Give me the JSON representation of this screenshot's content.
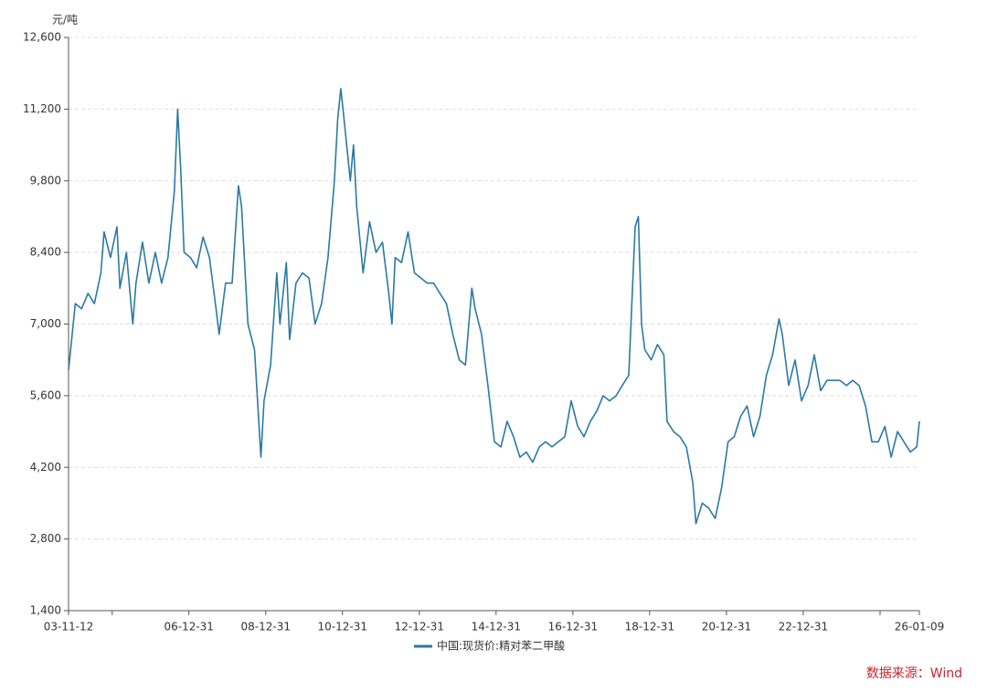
{
  "chart_data": {
    "type": "line",
    "y_unit": "元/吨",
    "source": "数据来源：Wind",
    "ylim": [
      1400,
      12600
    ],
    "yticks": [
      {
        "value": 1400,
        "label": "1,400"
      },
      {
        "value": 2800,
        "label": "2,800"
      },
      {
        "value": 4200,
        "label": "4,200"
      },
      {
        "value": 5600,
        "label": "5,600"
      },
      {
        "value": 7000,
        "label": "7,000"
      },
      {
        "value": 8400,
        "label": "8,400"
      },
      {
        "value": 9800,
        "label": "9,800"
      },
      {
        "value": 11200,
        "label": "11,200"
      },
      {
        "value": 12600,
        "label": "12,600"
      }
    ],
    "xlim": [
      "2003-11-12",
      "2026-01-09"
    ],
    "xticks": [
      {
        "value": "2003-11-12",
        "label": "03-11-12"
      },
      {
        "value": "2004-12-31",
        "label": null
      },
      {
        "value": "2006-12-31",
        "label": "06-12-31"
      },
      {
        "value": "2008-12-31",
        "label": "08-12-31"
      },
      {
        "value": "2010-12-31",
        "label": "10-12-31"
      },
      {
        "value": "2012-12-31",
        "label": "12-12-31"
      },
      {
        "value": "2014-12-31",
        "label": "14-12-31"
      },
      {
        "value": "2016-12-31",
        "label": "16-12-31"
      },
      {
        "value": "2018-12-31",
        "label": "18-12-31"
      },
      {
        "value": "2020-12-31",
        "label": "20-12-31"
      },
      {
        "value": "2022-12-31",
        "label": "22-12-31"
      },
      {
        "value": "2024-12-31",
        "label": null
      },
      {
        "value": "2026-01-09",
        "label": "26-01-09"
      }
    ],
    "grid": true,
    "legend": "bottom",
    "x": [
      "2003-11-12",
      "2004-01-15",
      "2004-03-15",
      "2004-05-15",
      "2004-07-15",
      "2004-09-15",
      "2004-10-15",
      "2004-12-15",
      "2005-02-15",
      "2005-03-15",
      "2005-05-15",
      "2005-07-15",
      "2005-08-15",
      "2005-10-15",
      "2005-12-15",
      "2006-02-15",
      "2006-04-15",
      "2006-06-15",
      "2006-08-15",
      "2006-09-15",
      "2006-10-15",
      "2006-11-15",
      "2007-01-15",
      "2007-03-15",
      "2007-05-15",
      "2007-07-15",
      "2007-09-15",
      "2007-10-15",
      "2007-12-15",
      "2008-02-15",
      "2008-04-15",
      "2008-05-15",
      "2008-07-15",
      "2008-09-15",
      "2008-11-15",
      "2008-12-15",
      "2009-02-15",
      "2009-04-15",
      "2009-05-15",
      "2009-07-15",
      "2009-08-15",
      "2009-10-15",
      "2009-12-15",
      "2010-02-15",
      "2010-04-15",
      "2010-06-15",
      "2010-08-15",
      "2010-10-15",
      "2010-11-15",
      "2010-12-15",
      "2011-01-15",
      "2011-03-15",
      "2011-04-15",
      "2011-05-15",
      "2011-07-15",
      "2011-09-15",
      "2011-11-15",
      "2012-01-15",
      "2012-03-15",
      "2012-04-15",
      "2012-05-15",
      "2012-07-15",
      "2012-09-15",
      "2012-11-15",
      "2013-01-15",
      "2013-03-15",
      "2013-05-15",
      "2013-07-15",
      "2013-09-15",
      "2013-11-15",
      "2014-01-15",
      "2014-03-15",
      "2014-05-15",
      "2014-06-15",
      "2014-08-15",
      "2014-10-15",
      "2014-12-15",
      "2015-02-15",
      "2015-04-15",
      "2015-06-15",
      "2015-08-15",
      "2015-10-15",
      "2015-12-15",
      "2016-02-15",
      "2016-04-15",
      "2016-06-15",
      "2016-08-15",
      "2016-10-15",
      "2016-12-15",
      "2017-02-15",
      "2017-04-15",
      "2017-06-15",
      "2017-08-15",
      "2017-10-15",
      "2017-12-15",
      "2018-02-15",
      "2018-04-15",
      "2018-06-15",
      "2018-08-15",
      "2018-09-15",
      "2018-10-15",
      "2018-11-15",
      "2019-01-15",
      "2019-03-15",
      "2019-05-15",
      "2019-06-15",
      "2019-08-15",
      "2019-10-15",
      "2019-12-15",
      "2020-02-15",
      "2020-03-15",
      "2020-05-15",
      "2020-07-15",
      "2020-09-15",
      "2020-11-15",
      "2021-01-15",
      "2021-03-15",
      "2021-05-15",
      "2021-07-15",
      "2021-09-15",
      "2021-11-15",
      "2022-01-15",
      "2022-03-15",
      "2022-05-15",
      "2022-06-15",
      "2022-08-15",
      "2022-10-15",
      "2022-12-15",
      "2023-02-15",
      "2023-04-15",
      "2023-06-15",
      "2023-08-15",
      "2023-10-15",
      "2023-12-15",
      "2024-02-15",
      "2024-04-15",
      "2024-06-15",
      "2024-08-15",
      "2024-10-15",
      "2024-12-15",
      "2025-02-15",
      "2025-04-15",
      "2025-06-15",
      "2025-08-15",
      "2025-10-15",
      "2025-12-15",
      "2026-01-09"
    ],
    "series": [
      {
        "name": "中国:现货价:精对苯二甲酸",
        "color": "#2a7aa3",
        "values": [
          6100,
          7400,
          7300,
          7600,
          7400,
          8000,
          8800,
          8300,
          8900,
          7700,
          8400,
          7000,
          7800,
          8600,
          7800,
          8400,
          7800,
          8300,
          9600,
          11200,
          10000,
          8400,
          8300,
          8100,
          8700,
          8300,
          7300,
          6800,
          7800,
          7800,
          9700,
          9300,
          7000,
          6500,
          4400,
          5500,
          6200,
          8000,
          7000,
          8200,
          6700,
          7800,
          8000,
          7900,
          7000,
          7400,
          8300,
          9800,
          11000,
          11600,
          11000,
          9800,
          10500,
          9300,
          8000,
          9000,
          8400,
          8600,
          7600,
          7000,
          8300,
          8200,
          8800,
          8000,
          7900,
          7800,
          7800,
          7600,
          7400,
          6800,
          6300,
          6200,
          7700,
          7300,
          6800,
          5800,
          4700,
          4600,
          5100,
          4800,
          4400,
          4500,
          4300,
          4600,
          4700,
          4600,
          4700,
          4800,
          5500,
          5000,
          4800,
          5100,
          5300,
          5600,
          5500,
          5600,
          5800,
          6000,
          8900,
          9100,
          7000,
          6500,
          6300,
          6600,
          6400,
          5100,
          4900,
          4800,
          4600,
          3900,
          3100,
          3500,
          3400,
          3200,
          3800,
          4700,
          4800,
          5200,
          5400,
          4800,
          5200,
          6000,
          6400,
          7100,
          6800,
          5800,
          6300,
          5500,
          5800,
          6400,
          5700,
          5900,
          5900,
          5900,
          5800,
          5900,
          5800,
          5400,
          4700,
          4700,
          5000,
          4400,
          4900,
          4700,
          4500,
          4600,
          5100
        ]
      }
    ]
  }
}
